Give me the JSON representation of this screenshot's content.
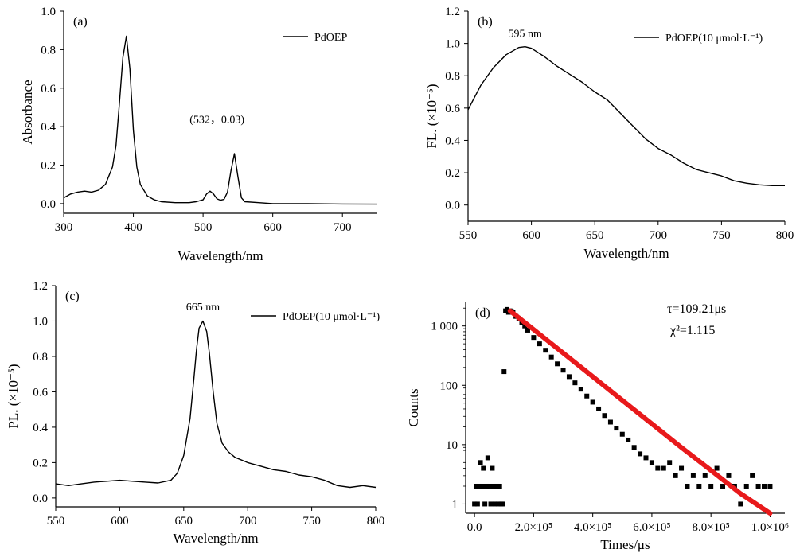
{
  "chart_data": [
    {
      "id": "a",
      "type": "line",
      "panel_label": "(a)",
      "xlabel": "Wavelength/nm",
      "ylabel": "Absorbance",
      "xlim": [
        300,
        750
      ],
      "ylim": [
        -0.05,
        1.0
      ],
      "x_ticks": [
        300,
        400,
        500,
        600,
        700
      ],
      "x_tick_labels": [
        "300",
        "400",
        "500",
        "600",
        "700"
      ],
      "y_ticks": [
        0.0,
        0.2,
        0.4,
        0.6,
        0.8,
        1.0
      ],
      "y_tick_labels": [
        "0.0",
        "0.2",
        "0.4",
        "0.6",
        "0.8",
        "1.0"
      ],
      "legend": {
        "entries": [
          "PdOEP"
        ],
        "placement": "top-right"
      },
      "annotations": [
        {
          "text": "(532，0.03)",
          "x": 520,
          "y": 0.42
        }
      ],
      "series": [
        {
          "name": "PdOEP",
          "x": [
            300,
            310,
            320,
            330,
            340,
            350,
            360,
            370,
            375,
            380,
            385,
            390,
            395,
            400,
            405,
            410,
            420,
            430,
            440,
            460,
            480,
            490,
            500,
            505,
            510,
            515,
            520,
            525,
            530,
            535,
            540,
            545,
            550,
            555,
            560,
            580,
            600,
            650,
            700,
            750
          ],
          "y": [
            0.03,
            0.05,
            0.06,
            0.065,
            0.06,
            0.07,
            0.1,
            0.19,
            0.3,
            0.52,
            0.76,
            0.87,
            0.7,
            0.38,
            0.19,
            0.1,
            0.04,
            0.02,
            0.01,
            0.005,
            0.005,
            0.01,
            0.02,
            0.05,
            0.065,
            0.05,
            0.025,
            0.018,
            0.022,
            0.06,
            0.17,
            0.26,
            0.14,
            0.03,
            0.01,
            0.005,
            0.0,
            0.0,
            -0.002,
            -0.003
          ]
        }
      ]
    },
    {
      "id": "b",
      "type": "line",
      "panel_label": "(b)",
      "xlabel": "Wavelength/nm",
      "ylabel": "FL. (×10⁻⁵)",
      "xlim": [
        550,
        800
      ],
      "ylim": [
        -0.1,
        1.2
      ],
      "x_ticks": [
        550,
        600,
        650,
        700,
        750,
        800
      ],
      "x_tick_labels": [
        "550",
        "600",
        "650",
        "700",
        "750",
        "800"
      ],
      "y_ticks": [
        0.0,
        0.2,
        0.4,
        0.6,
        0.8,
        1.0,
        1.2
      ],
      "y_tick_labels": [
        "0.0",
        "0.2",
        "0.4",
        "0.6",
        "0.8",
        "1.0",
        "1.2"
      ],
      "legend": {
        "entries": [
          "PdOEP(10 μmol·L⁻¹)"
        ],
        "placement": "top-right"
      },
      "annotations": [
        {
          "text": "595 nm",
          "x": 595,
          "y": 1.04
        }
      ],
      "series": [
        {
          "name": "PdOEP(10 μmol·L⁻¹)",
          "x": [
            550,
            560,
            570,
            580,
            590,
            595,
            600,
            610,
            620,
            630,
            640,
            650,
            660,
            670,
            680,
            690,
            700,
            710,
            720,
            730,
            740,
            750,
            760,
            770,
            780,
            790,
            800
          ],
          "y": [
            0.59,
            0.74,
            0.85,
            0.93,
            0.975,
            0.98,
            0.97,
            0.92,
            0.86,
            0.81,
            0.76,
            0.7,
            0.65,
            0.57,
            0.49,
            0.41,
            0.35,
            0.31,
            0.26,
            0.22,
            0.2,
            0.18,
            0.15,
            0.135,
            0.125,
            0.12,
            0.12
          ]
        }
      ]
    },
    {
      "id": "c",
      "type": "line",
      "panel_label": "(c)",
      "xlabel": "Wavelength/nm",
      "ylabel": "PL. (×10⁻⁵)",
      "xlim": [
        550,
        800
      ],
      "ylim": [
        -0.05,
        1.2
      ],
      "x_ticks": [
        550,
        600,
        650,
        700,
        750,
        800
      ],
      "x_tick_labels": [
        "550",
        "600",
        "650",
        "700",
        "750",
        "800"
      ],
      "y_ticks": [
        0.0,
        0.2,
        0.4,
        0.6,
        0.8,
        1.0,
        1.2
      ],
      "y_tick_labels": [
        "0.0",
        "0.2",
        "0.4",
        "0.6",
        "0.8",
        "1.0",
        "1.2"
      ],
      "legend": {
        "entries": [
          "PdOEP(10 μmol·L⁻¹)"
        ],
        "placement": "top-right"
      },
      "annotations": [
        {
          "text": "665 nm",
          "x": 665,
          "y": 1.06
        }
      ],
      "series": [
        {
          "name": "PdOEP(10 μmol·L⁻¹)",
          "x": [
            550,
            560,
            570,
            580,
            590,
            600,
            610,
            620,
            630,
            640,
            645,
            650,
            655,
            658,
            660,
            662,
            665,
            668,
            670,
            673,
            676,
            680,
            685,
            690,
            700,
            710,
            720,
            730,
            740,
            750,
            760,
            770,
            780,
            790,
            800
          ],
          "y": [
            0.08,
            0.07,
            0.08,
            0.09,
            0.095,
            0.1,
            0.095,
            0.09,
            0.085,
            0.1,
            0.14,
            0.24,
            0.45,
            0.68,
            0.84,
            0.96,
            1.0,
            0.94,
            0.82,
            0.6,
            0.42,
            0.31,
            0.26,
            0.23,
            0.2,
            0.18,
            0.16,
            0.15,
            0.13,
            0.12,
            0.1,
            0.07,
            0.06,
            0.07,
            0.06
          ]
        }
      ]
    },
    {
      "id": "d",
      "type": "scatter",
      "panel_label": "(d)",
      "xlabel": "Times/μs",
      "ylabel": "Counts",
      "xlim": [
        -30000,
        1050000
      ],
      "y_scale": "log",
      "ylim": [
        0.7,
        2500
      ],
      "x_ticks": [
        0,
        200000,
        400000,
        600000,
        800000,
        1000000
      ],
      "x_tick_labels": [
        "0.0",
        "2.0×10⁵",
        "4.0×10⁵",
        "6.0×10⁵",
        "8.0×10⁵",
        "1.0×10⁶"
      ],
      "y_ticks": [
        1,
        10,
        100,
        1000
      ],
      "y_tick_labels": [
        "1",
        "10",
        "100",
        "1 000"
      ],
      "annotations": [
        {
          "text": "τ=109.21μs"
        },
        {
          "text": "χ²=1.115"
        }
      ],
      "series": [
        {
          "kind": "measured",
          "marker": "square",
          "color": "#000000",
          "x": [
            0,
            5000,
            10000,
            15000,
            20000,
            25000,
            30000,
            35000,
            40000,
            45000,
            50000,
            55000,
            60000,
            65000,
            70000,
            75000,
            80000,
            85000,
            90000,
            95000,
            100000,
            105000,
            110000,
            115000,
            120000,
            125000,
            130000,
            140000,
            150000,
            160000,
            170000,
            180000,
            200000,
            220000,
            240000,
            260000,
            280000,
            300000,
            320000,
            340000,
            360000,
            380000,
            400000,
            420000,
            440000,
            460000,
            480000,
            500000,
            520000,
            540000,
            560000,
            580000,
            600000,
            620000,
            640000,
            660000,
            680000,
            700000,
            720000,
            740000,
            760000,
            780000,
            800000,
            820000,
            840000,
            860000,
            880000,
            900000,
            920000,
            940000,
            960000,
            980000,
            1000000
          ],
          "y": [
            1,
            2,
            1,
            2,
            5,
            2,
            4,
            1,
            2,
            6,
            2,
            1,
            4,
            2,
            1,
            2,
            1,
            2,
            1,
            1,
            170,
            1800,
            1900,
            1700,
            1800,
            1750,
            1700,
            1450,
            1350,
            1150,
            1000,
            850,
            640,
            500,
            390,
            300,
            230,
            180,
            140,
            110,
            86,
            66,
            52,
            40,
            31,
            24,
            19,
            15,
            12,
            9,
            7,
            6,
            5,
            4,
            4,
            5,
            3,
            4,
            2,
            3,
            2,
            3,
            2,
            4,
            2,
            3,
            2,
            1,
            2,
            3,
            2,
            2,
            2
          ]
        },
        {
          "kind": "fit",
          "color": "#e8191b",
          "tau": 109.21,
          "x": [
            120000,
            200000,
            300000,
            400000,
            500000,
            600000,
            700000,
            800000,
            900000,
            1000000
          ],
          "y": [
            1800,
            870,
            350,
            140,
            56,
            22.5,
            9.0,
            3.7,
            1.5,
            0.6
          ]
        }
      ]
    }
  ]
}
